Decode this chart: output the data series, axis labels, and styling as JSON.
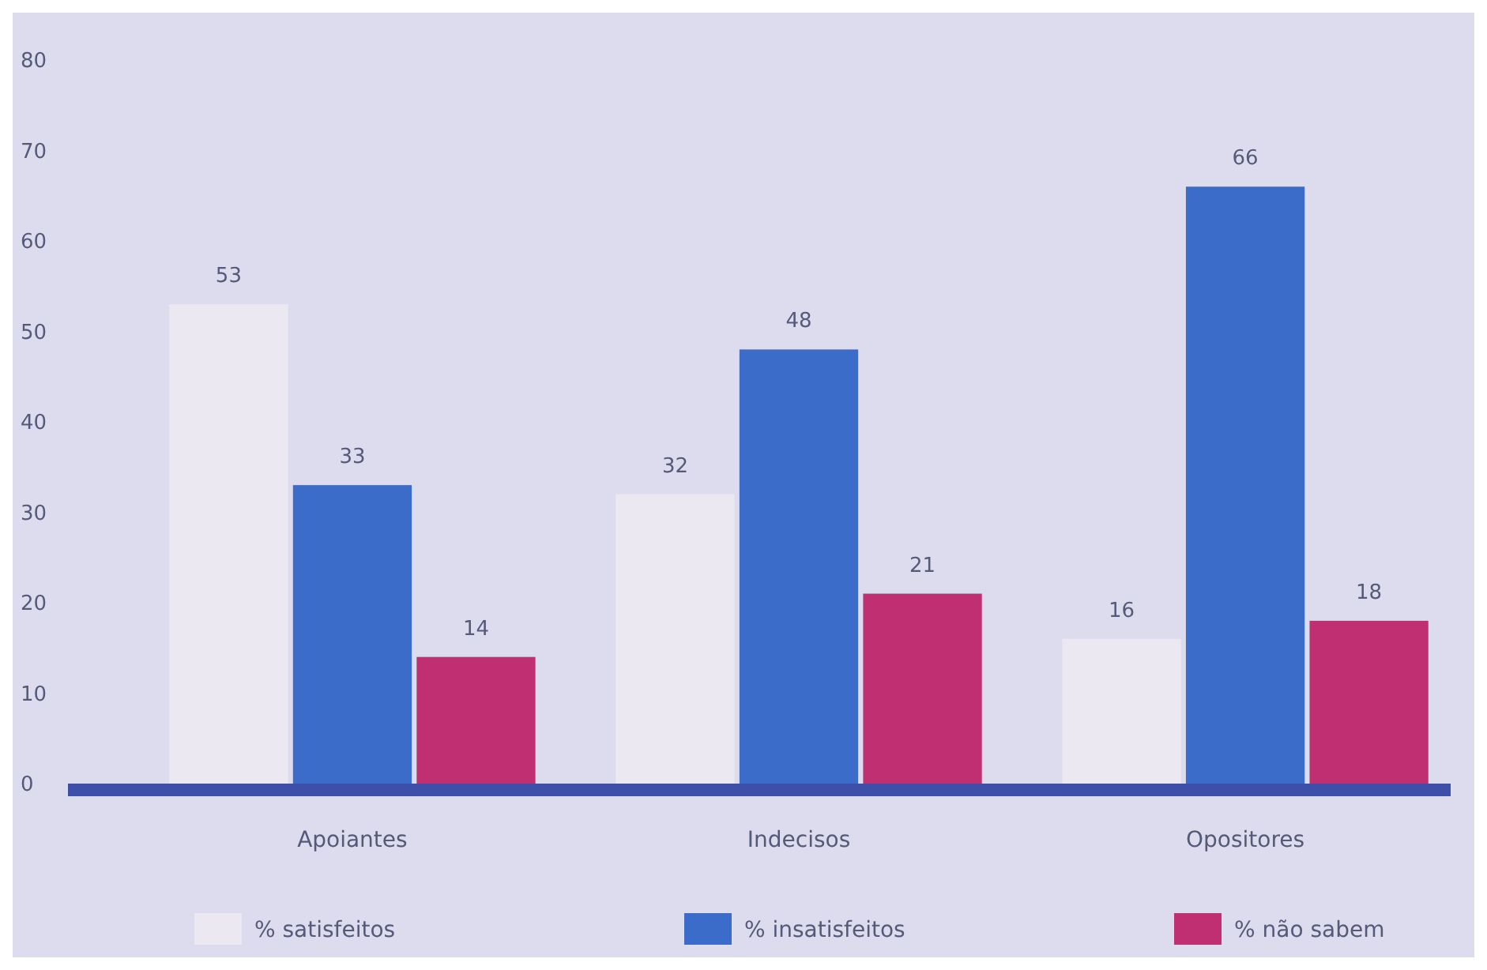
{
  "chart_data": {
    "type": "bar",
    "categories": [
      "Apoiantes",
      "Indecisos",
      "Opositores"
    ],
    "series": [
      {
        "name": "% satisfeitos",
        "color": "#ebe8f2",
        "values": [
          53,
          32,
          16
        ]
      },
      {
        "name": "% insatisfeitos",
        "color": "#3b6cc9",
        "values": [
          33,
          48,
          66
        ]
      },
      {
        "name": "% não sabem",
        "color": "#c02f72",
        "values": [
          14,
          21,
          18
        ]
      }
    ],
    "ylim": [
      0,
      80
    ],
    "yticks": [
      0,
      10,
      20,
      30,
      40,
      50,
      60,
      70,
      80
    ],
    "data_labels": true,
    "legend": "bottom",
    "grid": false
  }
}
